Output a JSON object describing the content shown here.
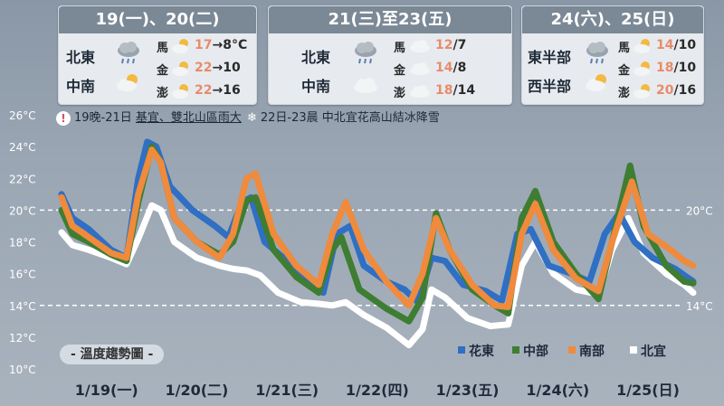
{
  "panels": [
    {
      "title": "19(一)、20(二)",
      "regions": [
        {
          "name": "北東",
          "icon": "cloud-rain-icon"
        },
        {
          "name": "中南",
          "icon": "partly-cloudy-icon"
        }
      ],
      "islands": [
        {
          "name": "馬",
          "icon": "partly-cloudy-icon",
          "max": "17",
          "arrow": "→",
          "min": "8°C"
        },
        {
          "name": "金",
          "icon": "partly-cloudy-icon",
          "max": "22",
          "arrow": "→",
          "min": "10"
        },
        {
          "name": "澎",
          "icon": "partly-cloudy-icon",
          "max": "22",
          "arrow": "→",
          "min": "16"
        }
      ]
    },
    {
      "title": "21(三)至23(五)",
      "regions": [
        {
          "name": "北東",
          "icon": "cloud-rain-icon"
        },
        {
          "name": "中南",
          "icon": "cloud-icon"
        }
      ],
      "islands": [
        {
          "name": "馬",
          "icon": "cloud-icon",
          "max": "12",
          "arrow": "/",
          "min": "7"
        },
        {
          "name": "金",
          "icon": "cloud-icon",
          "max": "14",
          "arrow": "/",
          "min": "8"
        },
        {
          "name": "澎",
          "icon": "cloud-icon",
          "max": "18",
          "arrow": "/",
          "min": "14"
        }
      ]
    },
    {
      "title": "24(六)、25(日)",
      "regions": [
        {
          "name": "東半部",
          "icon": "cloud-rain-icon"
        },
        {
          "name": "西半部",
          "icon": "partly-cloudy-icon"
        }
      ],
      "islands": [
        {
          "name": "馬",
          "icon": "partly-cloudy-icon",
          "max": "14",
          "arrow": "/",
          "min": "10"
        },
        {
          "name": "金",
          "icon": "partly-cloudy-icon",
          "max": "18",
          "arrow": "/",
          "min": "10"
        },
        {
          "name": "澎",
          "icon": "partly-cloudy-icon",
          "max": "20",
          "arrow": "/",
          "min": "16"
        }
      ]
    }
  ],
  "notice": {
    "part1": "19晚-21日",
    "part2": "基宜、雙北山區雨大",
    "part3": "22日-23晨 中北宜花高山結冰降雪"
  },
  "legend_title": "- 溫度趨勢圖 -",
  "colors": {
    "hualien": "#2f6fc4",
    "central": "#3e7d32",
    "south": "#f08a3c",
    "north": "#ffffff",
    "max_temp": "#e88b6a"
  },
  "chart_data": {
    "type": "line",
    "x_tick_labels": [
      "1/19(一)",
      "1/20(二)",
      "1/21(三)",
      "1/22(四)",
      "1/23(五)",
      "1/24(六)",
      "1/25(日)"
    ],
    "y_tick_labels": [
      "10°C",
      "12°C",
      "14°C",
      "16°C",
      "18°C",
      "20°C",
      "22°C",
      "24°C",
      "26°C"
    ],
    "ylim": [
      10,
      26
    ],
    "reference_lines": [
      {
        "value": 20,
        "label": "20°C"
      },
      {
        "value": 14,
        "label": "14°C"
      }
    ],
    "x_range": [
      0,
      7
    ],
    "series": [
      {
        "name": "花東",
        "color": "#2f6fc4",
        "points": [
          [
            0,
            21
          ],
          [
            0.12,
            19.5
          ],
          [
            0.3,
            18.8
          ],
          [
            0.55,
            17.5
          ],
          [
            0.72,
            17
          ],
          [
            0.85,
            22
          ],
          [
            0.95,
            24.3
          ],
          [
            1.05,
            24
          ],
          [
            1.2,
            21.5
          ],
          [
            1.45,
            20
          ],
          [
            1.7,
            19
          ],
          [
            1.85,
            18.3
          ],
          [
            2.0,
            20.5
          ],
          [
            2.1,
            20.8
          ],
          [
            2.25,
            18
          ],
          [
            2.5,
            16.8
          ],
          [
            2.75,
            15.5
          ],
          [
            2.9,
            14.8
          ],
          [
            3.05,
            18.5
          ],
          [
            3.2,
            19
          ],
          [
            3.35,
            16.5
          ],
          [
            3.6,
            15.5
          ],
          [
            3.8,
            15
          ],
          [
            3.95,
            14.2
          ],
          [
            4.1,
            17
          ],
          [
            4.25,
            16.8
          ],
          [
            4.45,
            15.3
          ],
          [
            4.7,
            14.9
          ],
          [
            4.88,
            14.3
          ],
          [
            5.05,
            18.5
          ],
          [
            5.2,
            18.8
          ],
          [
            5.4,
            16.5
          ],
          [
            5.65,
            16
          ],
          [
            5.85,
            15.5
          ],
          [
            6.02,
            18.5
          ],
          [
            6.18,
            19.8
          ],
          [
            6.35,
            18
          ],
          [
            6.55,
            17
          ],
          [
            6.8,
            16.3
          ],
          [
            7,
            15.5
          ]
        ]
      },
      {
        "name": "中部",
        "color": "#3e7d32",
        "points": [
          [
            0,
            20
          ],
          [
            0.12,
            18.5
          ],
          [
            0.3,
            18
          ],
          [
            0.55,
            17.2
          ],
          [
            0.72,
            16.8
          ],
          [
            0.85,
            20.5
          ],
          [
            1.0,
            24
          ],
          [
            1.1,
            23
          ],
          [
            1.25,
            19.5
          ],
          [
            1.5,
            18
          ],
          [
            1.75,
            17.2
          ],
          [
            1.9,
            18
          ],
          [
            2.05,
            20.6
          ],
          [
            2.15,
            20.8
          ],
          [
            2.35,
            17.5
          ],
          [
            2.6,
            15.8
          ],
          [
            2.85,
            14.8
          ],
          [
            3.0,
            17.5
          ],
          [
            3.1,
            18.3
          ],
          [
            3.3,
            15
          ],
          [
            3.6,
            13.8
          ],
          [
            3.85,
            13
          ],
          [
            4.0,
            14.5
          ],
          [
            4.15,
            19.8
          ],
          [
            4.3,
            17.5
          ],
          [
            4.55,
            15
          ],
          [
            4.8,
            14
          ],
          [
            4.95,
            13.5
          ],
          [
            5.1,
            19.5
          ],
          [
            5.25,
            21.2
          ],
          [
            5.45,
            18
          ],
          [
            5.7,
            16
          ],
          [
            5.95,
            14.4
          ],
          [
            6.1,
            18
          ],
          [
            6.3,
            22.8
          ],
          [
            6.45,
            19
          ],
          [
            6.7,
            16.5
          ],
          [
            6.9,
            15.5
          ],
          [
            7,
            15.4
          ]
        ]
      },
      {
        "name": "南部",
        "color": "#f08a3c",
        "points": [
          [
            0,
            20.8
          ],
          [
            0.12,
            19
          ],
          [
            0.3,
            18.3
          ],
          [
            0.55,
            17.3
          ],
          [
            0.72,
            17
          ],
          [
            0.85,
            21
          ],
          [
            1.0,
            23.8
          ],
          [
            1.1,
            23
          ],
          [
            1.25,
            19.5
          ],
          [
            1.5,
            18
          ],
          [
            1.75,
            17
          ],
          [
            1.9,
            18.5
          ],
          [
            2.05,
            22
          ],
          [
            2.15,
            22.3
          ],
          [
            2.35,
            18.5
          ],
          [
            2.6,
            16.5
          ],
          [
            2.85,
            15.3
          ],
          [
            3.0,
            18.5
          ],
          [
            3.15,
            20.5
          ],
          [
            3.35,
            17.5
          ],
          [
            3.6,
            15.5
          ],
          [
            3.85,
            14
          ],
          [
            4.0,
            16
          ],
          [
            4.15,
            19.5
          ],
          [
            4.3,
            17.5
          ],
          [
            4.55,
            15.3
          ],
          [
            4.8,
            14
          ],
          [
            4.95,
            13.9
          ],
          [
            5.1,
            18.5
          ],
          [
            5.25,
            20.4
          ],
          [
            5.45,
            17.5
          ],
          [
            5.7,
            15.7
          ],
          [
            5.95,
            14.9
          ],
          [
            6.1,
            18
          ],
          [
            6.32,
            21.8
          ],
          [
            6.5,
            18.5
          ],
          [
            6.75,
            17.5
          ],
          [
            6.9,
            16.8
          ],
          [
            7,
            16.5
          ]
        ]
      },
      {
        "name": "北宜",
        "color": "#ffffff",
        "points": [
          [
            0,
            18.6
          ],
          [
            0.12,
            17.8
          ],
          [
            0.3,
            17.5
          ],
          [
            0.55,
            17
          ],
          [
            0.72,
            16.6
          ],
          [
            0.85,
            18.2
          ],
          [
            1.0,
            20.3
          ],
          [
            1.1,
            20
          ],
          [
            1.25,
            18
          ],
          [
            1.5,
            17
          ],
          [
            1.75,
            16.5
          ],
          [
            1.9,
            16.3
          ],
          [
            2.05,
            16.2
          ],
          [
            2.2,
            15.9
          ],
          [
            2.4,
            14.8
          ],
          [
            2.65,
            14.2
          ],
          [
            2.85,
            14.1
          ],
          [
            3.0,
            14
          ],
          [
            3.15,
            14.2
          ],
          [
            3.35,
            13.4
          ],
          [
            3.6,
            12.6
          ],
          [
            3.85,
            11.5
          ],
          [
            4.0,
            12.5
          ],
          [
            4.1,
            15
          ],
          [
            4.25,
            14.5
          ],
          [
            4.5,
            13.2
          ],
          [
            4.75,
            12.7
          ],
          [
            4.95,
            12.8
          ],
          [
            5.1,
            16.5
          ],
          [
            5.25,
            18
          ],
          [
            5.45,
            16
          ],
          [
            5.7,
            15
          ],
          [
            5.95,
            14.7
          ],
          [
            6.1,
            17.5
          ],
          [
            6.28,
            19.5
          ],
          [
            6.45,
            17.3
          ],
          [
            6.7,
            16
          ],
          [
            6.9,
            15.3
          ],
          [
            7,
            14.8
          ]
        ]
      }
    ]
  }
}
